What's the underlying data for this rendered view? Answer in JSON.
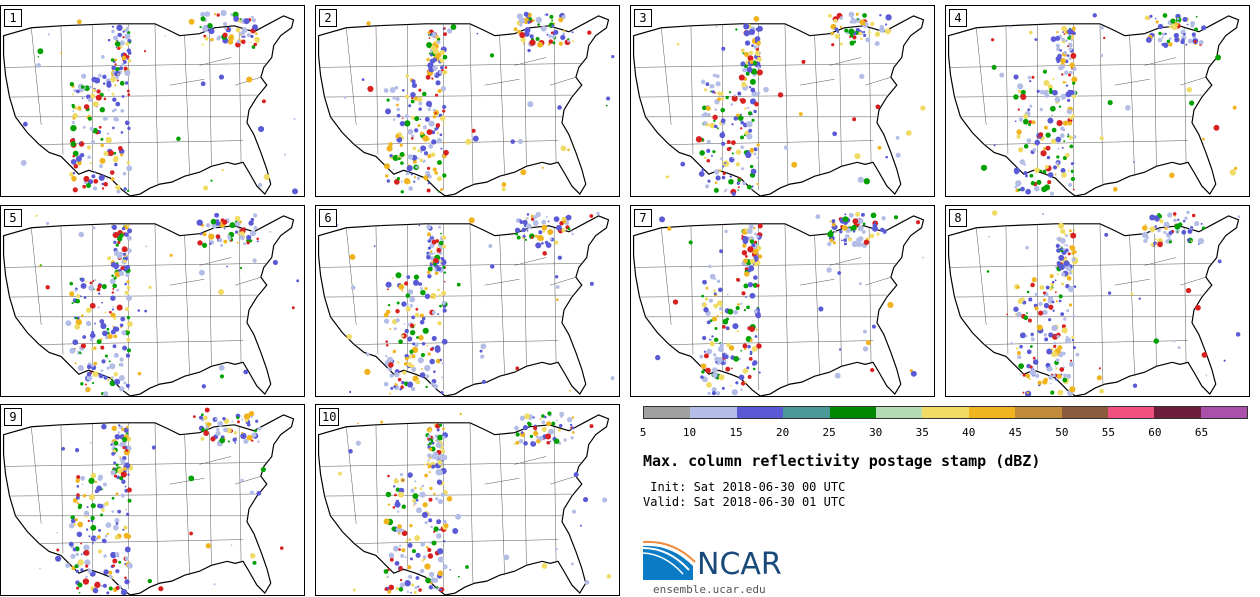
{
  "panels": [
    {
      "label": "1"
    },
    {
      "label": "2"
    },
    {
      "label": "3"
    },
    {
      "label": "4"
    },
    {
      "label": "5"
    },
    {
      "label": "6"
    },
    {
      "label": "7"
    },
    {
      "label": "8"
    },
    {
      "label": "9"
    },
    {
      "label": "10"
    }
  ],
  "colorbar": {
    "colors": [
      "#a0a0a0",
      "#b4bde6",
      "#5a5ad6",
      "#4a9898",
      "#008800",
      "#b4dcb4",
      "#f0dc64",
      "#f0b41e",
      "#c08c3c",
      "#8c5a3c",
      "#f05080",
      "#6e1e3c",
      "#aa50aa"
    ],
    "ticks": [
      "5",
      "10",
      "15",
      "20",
      "25",
      "30",
      "35",
      "40",
      "45",
      "50",
      "55",
      "60",
      "65"
    ]
  },
  "title": "Max. column reflectivity postage stamp (dBZ)",
  "init": " Init: Sat 2018-06-30 00 UTC",
  "valid": "Valid: Sat 2018-06-30 01 UTC",
  "logo": {
    "text": "NCAR",
    "site": "ensemble.ucar.edu"
  },
  "map_colors": {
    "border": "#000000",
    "state": "#555555",
    "echo_light": "#b4bde6",
    "echo_mid": "#5a5ad6",
    "echo_green": "#00a000",
    "echo_yellow": "#f0dc64",
    "echo_orange": "#f0b41e",
    "echo_red": "#d82020"
  }
}
